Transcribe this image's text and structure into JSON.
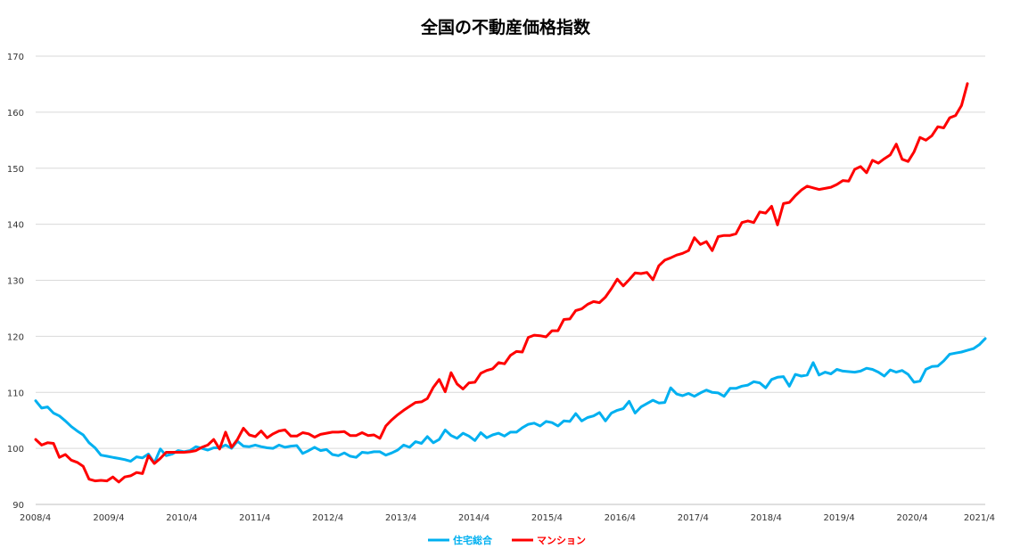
{
  "chart_data": {
    "type": "line",
    "title": "全国の不動産価格指数",
    "xlabel": "",
    "ylabel": "",
    "ylim": [
      90,
      170
    ],
    "yticks": [
      90,
      100,
      110,
      120,
      130,
      140,
      150,
      160,
      170
    ],
    "x_tick_labels": [
      "2008/4",
      "2009/4",
      "2010/4",
      "2011/4",
      "2012/4",
      "2013/4",
      "2014/4",
      "2015/4",
      "2016/4",
      "2017/4",
      "2018/4",
      "2019/4",
      "2020/4",
      "2021/4"
    ],
    "x_start": "2008/4",
    "x_end": "2021/4",
    "grid": true,
    "legend_position": "bottom",
    "series": [
      {
        "name": "住宅総合",
        "color": "#00b0f0",
        "values": [
          108.5,
          107.2,
          107.4,
          106.3,
          105.8,
          104.9,
          103.9,
          103.1,
          102.4,
          101.0,
          100.1,
          98.8,
          98.6,
          98.4,
          98.2,
          98.0,
          97.7,
          98.5,
          98.3,
          99.0,
          97.4,
          99.9,
          98.7,
          99.0,
          99.6,
          99.4,
          99.6,
          100.3,
          100.0,
          99.7,
          100.1,
          100.1,
          100.6,
          100.0,
          101.3,
          100.4,
          100.3,
          100.6,
          100.3,
          100.1,
          100.0,
          100.6,
          100.2,
          100.4,
          100.5,
          99.1,
          99.6,
          100.2,
          99.6,
          99.8,
          98.9,
          98.7,
          99.2,
          98.6,
          98.4,
          99.3,
          99.2,
          99.4,
          99.4,
          98.8,
          99.2,
          99.7,
          100.6,
          100.2,
          101.2,
          100.9,
          102.1,
          101.0,
          101.6,
          103.3,
          102.3,
          101.8,
          102.7,
          102.2,
          101.4,
          102.8,
          101.9,
          102.4,
          102.7,
          102.2,
          102.9,
          102.9,
          103.7,
          104.3,
          104.5,
          104.0,
          104.8,
          104.6,
          104.0,
          104.9,
          104.8,
          106.2,
          104.9,
          105.5,
          105.8,
          106.4,
          104.9,
          106.3,
          106.8,
          107.1,
          108.4,
          106.3,
          107.4,
          108.0,
          108.6,
          108.1,
          108.2,
          110.8,
          109.7,
          109.4,
          109.8,
          109.3,
          109.9,
          110.4,
          110.0,
          109.9,
          109.3,
          110.7,
          110.7,
          111.1,
          111.3,
          111.9,
          111.7,
          110.8,
          112.3,
          112.7,
          112.8,
          111.1,
          113.2,
          112.9,
          113.1,
          115.3,
          113.1,
          113.6,
          113.3,
          114.1,
          113.8,
          113.7,
          113.6,
          113.8,
          114.3,
          114.1,
          113.6,
          112.9,
          114.0,
          113.6,
          113.9,
          113.2,
          111.8,
          112.0,
          114.1,
          114.6,
          114.7,
          115.6,
          116.8,
          117.0,
          117.2,
          117.5,
          117.8,
          118.5,
          119.6
        ]
      },
      {
        "name": "マンション",
        "color": "#ff0000",
        "values": [
          101.6,
          100.6,
          101.0,
          100.9,
          98.4,
          98.9,
          97.9,
          97.5,
          96.8,
          94.5,
          94.2,
          94.3,
          94.2,
          94.9,
          94.0,
          94.9,
          95.1,
          95.7,
          95.5,
          98.7,
          97.3,
          98.2,
          99.3,
          99.3,
          99.3,
          99.3,
          99.4,
          99.6,
          100.2,
          100.6,
          101.6,
          99.9,
          102.9,
          100.2,
          101.6,
          103.6,
          102.4,
          102.1,
          103.1,
          101.9,
          102.6,
          103.1,
          103.3,
          102.2,
          102.2,
          102.8,
          102.6,
          102.0,
          102.5,
          102.7,
          102.9,
          102.9,
          103.0,
          102.3,
          102.3,
          102.8,
          102.3,
          102.4,
          101.8,
          104.0,
          105.1,
          106.0,
          106.8,
          107.5,
          108.2,
          108.3,
          108.9,
          110.9,
          112.3,
          110.1,
          113.5,
          111.5,
          110.6,
          111.7,
          111.8,
          113.4,
          113.9,
          114.2,
          115.3,
          115.1,
          116.6,
          117.3,
          117.2,
          119.8,
          120.2,
          120.1,
          119.9,
          121.0,
          121.0,
          123.0,
          123.1,
          124.6,
          124.9,
          125.7,
          126.2,
          126.0,
          127.0,
          128.5,
          130.2,
          129.0,
          130.1,
          131.3,
          131.2,
          131.4,
          130.1,
          132.6,
          133.6,
          134.0,
          134.5,
          134.8,
          135.3,
          137.6,
          136.4,
          136.9,
          135.3,
          137.8,
          138.0,
          138.0,
          138.3,
          140.3,
          140.6,
          140.3,
          142.2,
          142.0,
          143.2,
          139.9,
          143.7,
          143.9,
          145.1,
          146.1,
          146.8,
          146.5,
          146.2,
          146.4,
          146.6,
          147.1,
          147.8,
          147.7,
          149.8,
          150.3,
          149.2,
          151.4,
          150.9,
          151.7,
          152.4,
          154.3,
          151.6,
          151.2,
          152.9,
          155.5,
          155.0,
          155.8,
          157.4,
          157.2,
          159.0,
          159.4,
          161.2,
          165.1
        ]
      }
    ]
  }
}
